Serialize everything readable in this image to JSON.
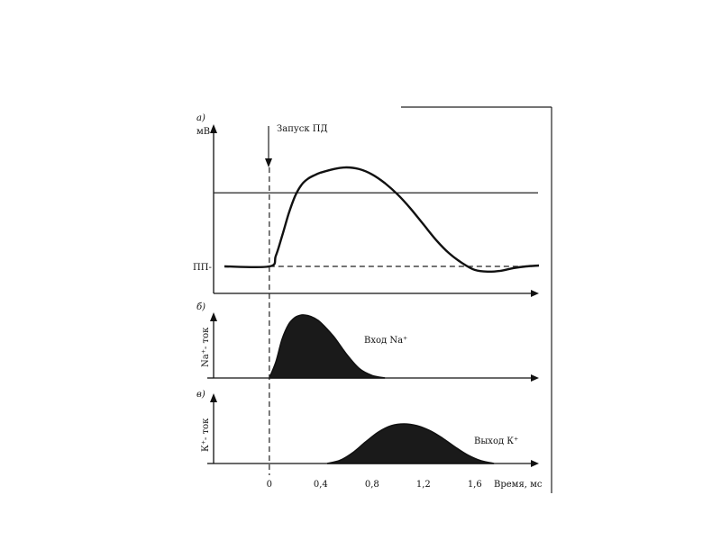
{
  "chart_data": [
    {
      "type": "line",
      "panel_label": "а)",
      "ylabel": "мВ",
      "y_reference_label": "ПП-",
      "annotation": "Запуск ПД",
      "xlabel": "Время, мс",
      "x_ticks": [
        "0",
        "0,4",
        "0,8",
        "1,2",
        "1,6"
      ],
      "xlim": [
        -0.35,
        2.1
      ],
      "ylim": [
        -0.35,
        1.4
      ],
      "threshold_level": 0.84,
      "series": [
        {
          "x": [
            -0.35,
            0.0,
            0.05,
            0.1,
            0.15,
            0.2,
            0.25,
            0.3,
            0.35,
            0.4,
            0.5,
            0.6,
            0.7,
            0.8,
            0.9,
            1.0,
            1.1,
            1.2,
            1.3,
            1.4,
            1.5,
            1.6,
            1.7,
            1.8,
            1.9,
            2.0,
            2.1
          ],
          "y": [
            0.0,
            0.0,
            0.12,
            0.35,
            0.6,
            0.8,
            0.93,
            1.0,
            1.04,
            1.07,
            1.11,
            1.13,
            1.11,
            1.05,
            0.95,
            0.82,
            0.66,
            0.48,
            0.3,
            0.15,
            0.04,
            -0.04,
            -0.06,
            -0.05,
            -0.02,
            0.0,
            0.01
          ]
        }
      ]
    },
    {
      "type": "area",
      "panel_label": "б)",
      "ylabel": "Na⁺- ток",
      "series_label": "Вход Na⁺",
      "xlim": [
        -0.35,
        2.1
      ],
      "ylim": [
        0,
        1.2
      ],
      "series": [
        {
          "x": [
            0.0,
            0.05,
            0.1,
            0.15,
            0.2,
            0.25,
            0.3,
            0.35,
            0.4,
            0.5,
            0.6,
            0.7,
            0.8,
            0.9
          ],
          "y": [
            0.0,
            0.25,
            0.62,
            0.85,
            0.96,
            1.0,
            0.99,
            0.95,
            0.88,
            0.66,
            0.38,
            0.15,
            0.04,
            0.0
          ]
        }
      ]
    },
    {
      "type": "area",
      "panel_label": "в)",
      "ylabel": "К⁺- ток",
      "series_label": "Выход К⁺",
      "xlim": [
        -0.35,
        2.1
      ],
      "ylim": [
        0,
        1.2
      ],
      "series": [
        {
          "x": [
            0.45,
            0.55,
            0.65,
            0.75,
            0.85,
            0.95,
            1.05,
            1.15,
            1.25,
            1.35,
            1.45,
            1.55,
            1.65,
            1.75
          ],
          "y": [
            0.0,
            0.07,
            0.24,
            0.48,
            0.7,
            0.84,
            0.88,
            0.84,
            0.73,
            0.56,
            0.36,
            0.18,
            0.06,
            0.0
          ]
        }
      ]
    }
  ]
}
